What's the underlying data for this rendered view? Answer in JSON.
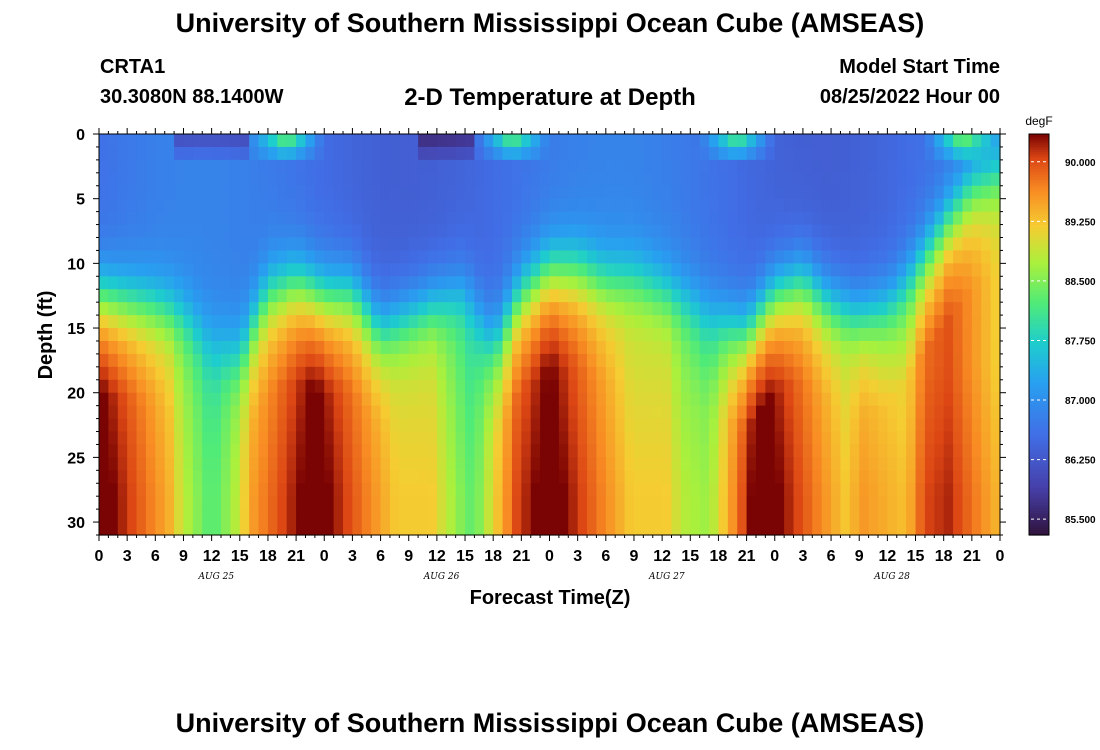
{
  "header": {
    "title": "University of Southern Mississippi Ocean Cube (AMSEAS)",
    "station_id": "CRTA1",
    "station_coords": "30.3080N  88.1400W",
    "plot_title": "2-D Temperature at Depth",
    "model_start_label": "Model Start Time",
    "model_start_value": "08/25/2022 Hour 00"
  },
  "footer": {
    "title": "University of Southern Mississippi Ocean Cube (AMSEAS)"
  },
  "chart_data": {
    "type": "heatmap",
    "title": "2-D Temperature at Depth",
    "xlabel": "Forecast Time(Z)",
    "ylabel": "Depth (ft)",
    "x_hours_range": [
      0,
      96
    ],
    "x_tick_step_hours": 3,
    "x_tick_labels": [
      "0",
      "3",
      "6",
      "9",
      "12",
      "15",
      "18",
      "21",
      "0",
      "3",
      "6",
      "9",
      "12",
      "15",
      "18",
      "21",
      "0",
      "3",
      "6",
      "9",
      "12",
      "15",
      "18",
      "21",
      "0",
      "3",
      "6",
      "9",
      "12",
      "15",
      "18",
      "21",
      "0"
    ],
    "day_labels": [
      "AUG 25",
      "AUG 26",
      "AUG 27",
      "AUG 28"
    ],
    "ylim": [
      0,
      31
    ],
    "y_ticks": [
      0,
      5,
      10,
      15,
      20,
      25,
      30
    ],
    "colorbar": {
      "unit": "degF",
      "range": [
        85.3,
        90.35
      ],
      "tick_values": [
        90.0,
        89.25,
        88.5,
        87.75,
        87.0,
        86.25,
        85.5
      ],
      "tick_labels": [
        "90.000",
        "89.250",
        "88.500",
        "87.750",
        "87.000",
        "86.250",
        "85.500"
      ]
    },
    "thermocline_depth_ft": [
      [
        0,
        12
      ],
      [
        6,
        13
      ],
      [
        9,
        14
      ],
      [
        12,
        16
      ],
      [
        15,
        17
      ],
      [
        18,
        12
      ],
      [
        21,
        11
      ],
      [
        24,
        12
      ],
      [
        27,
        12
      ],
      [
        30,
        15
      ],
      [
        33,
        14
      ],
      [
        36,
        13
      ],
      [
        39,
        12
      ],
      [
        42,
        16
      ],
      [
        45,
        12
      ],
      [
        48,
        10
      ],
      [
        51,
        10
      ],
      [
        54,
        11
      ],
      [
        57,
        11
      ],
      [
        60,
        12
      ],
      [
        63,
        13
      ],
      [
        66,
        14
      ],
      [
        69,
        15
      ],
      [
        72,
        12
      ],
      [
        75,
        11
      ],
      [
        78,
        13
      ],
      [
        81,
        14
      ],
      [
        84,
        13
      ],
      [
        87,
        10
      ],
      [
        90,
        7
      ],
      [
        93,
        4
      ],
      [
        96,
        3
      ]
    ],
    "warm_core_times_hours": [
      0,
      23,
      48,
      71,
      88
    ],
    "cool_column_times_hours": [
      12,
      40,
      65,
      86
    ]
  }
}
